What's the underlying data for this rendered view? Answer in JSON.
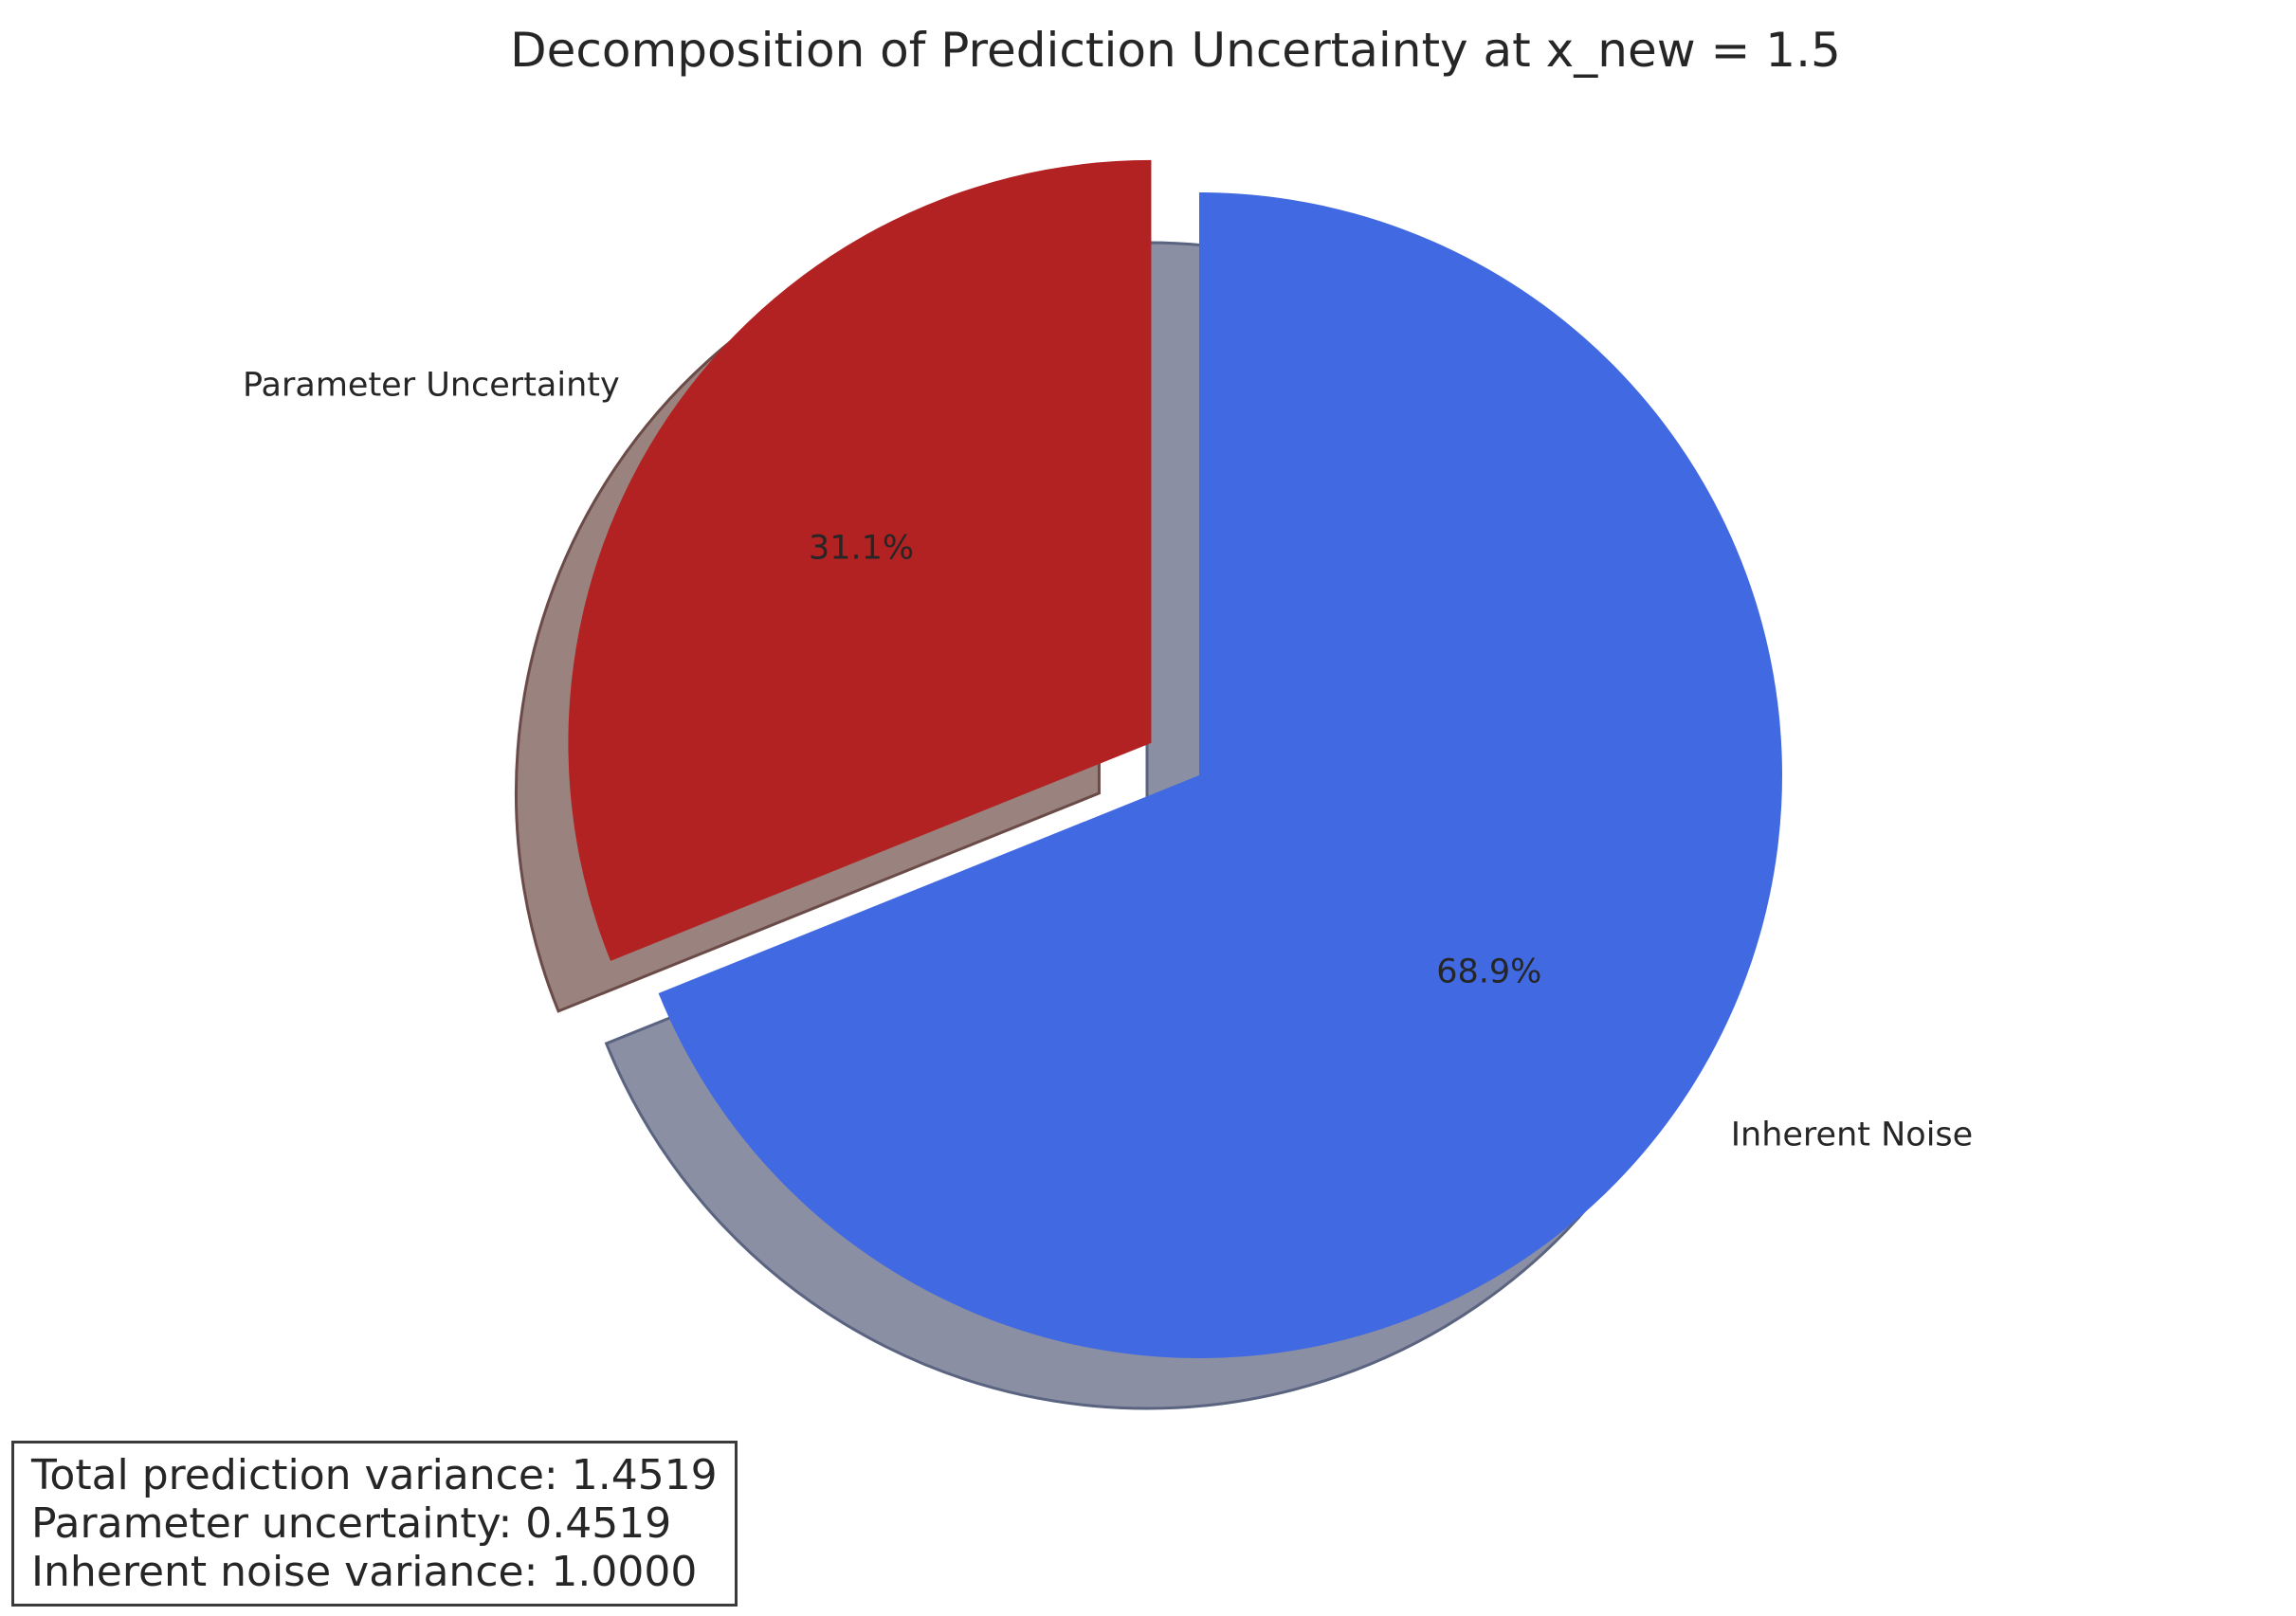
{
  "chart_data": {
    "type": "pie",
    "title": "Decomposition of Prediction Uncertainty at x_new = 1.5",
    "slices": [
      {
        "label": "Inherent Noise",
        "value": 68.9,
        "pct_label": "68.9%",
        "color": "#4169E1",
        "explode": false
      },
      {
        "label": "Parameter Uncertainty",
        "value": 31.1,
        "pct_label": "31.1%",
        "color": "#B22222",
        "explode": true
      }
    ],
    "shadow": true,
    "start_angle_deg": 90,
    "direction": "clockwise"
  },
  "info_box": {
    "line1": "Total prediction variance: 1.4519",
    "line2": "Parameter uncertainty: 0.4519",
    "line3": "Inherent noise variance: 1.0000"
  }
}
